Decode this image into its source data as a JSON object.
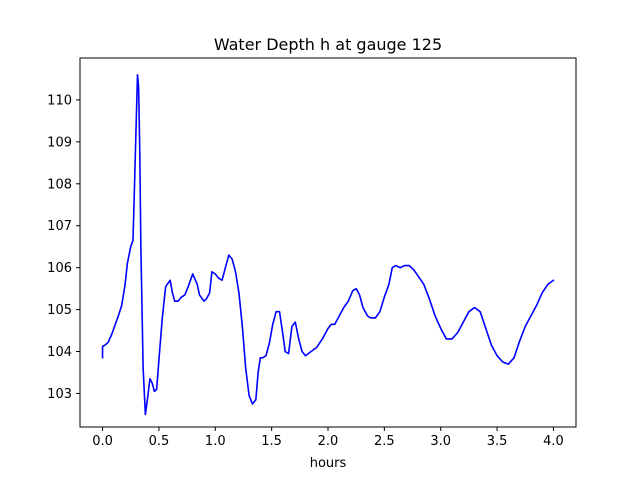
{
  "chart_data": {
    "type": "line",
    "title": "Water Depth h at gauge 125",
    "xlabel": "hours",
    "ylabel": "",
    "xlim": [
      -0.2,
      4.2
    ],
    "ylim": [
      102.2,
      111.0
    ],
    "xticks": [
      0.0,
      0.5,
      1.0,
      1.5,
      2.0,
      2.5,
      3.0,
      3.5,
      4.0
    ],
    "xtick_labels": [
      "0.0",
      "0.5",
      "1.0",
      "1.5",
      "2.0",
      "2.5",
      "3.0",
      "3.5",
      "4.0"
    ],
    "yticks": [
      103,
      104,
      105,
      106,
      107,
      108,
      109,
      110
    ],
    "ytick_labels": [
      "103",
      "104",
      "105",
      "106",
      "107",
      "108",
      "109",
      "110"
    ],
    "grid": false,
    "series": [
      {
        "color": "#0000ff",
        "x": [
          0.0,
          0.0,
          0.02,
          0.05,
          0.08,
          0.1,
          0.14,
          0.17,
          0.2,
          0.22,
          0.25,
          0.27,
          0.28,
          0.3,
          0.31,
          0.32,
          0.33,
          0.34,
          0.36,
          0.38,
          0.4,
          0.42,
          0.44,
          0.46,
          0.48,
          0.5,
          0.53,
          0.56,
          0.6,
          0.62,
          0.64,
          0.67,
          0.7,
          0.73,
          0.76,
          0.8,
          0.84,
          0.86,
          0.9,
          0.92,
          0.95,
          0.97,
          1.0,
          1.03,
          1.06,
          1.08,
          1.12,
          1.15,
          1.18,
          1.21,
          1.24,
          1.27,
          1.3,
          1.33,
          1.36,
          1.38,
          1.4,
          1.42,
          1.45,
          1.48,
          1.51,
          1.54,
          1.57,
          1.6,
          1.62,
          1.65,
          1.68,
          1.71,
          1.74,
          1.77,
          1.8,
          1.85,
          1.9,
          1.95,
          2.0,
          2.03,
          2.06,
          2.1,
          2.14,
          2.18,
          2.22,
          2.25,
          2.28,
          2.31,
          2.35,
          2.38,
          2.42,
          2.46,
          2.5,
          2.54,
          2.57,
          2.6,
          2.64,
          2.68,
          2.72,
          2.76,
          2.8,
          2.85,
          2.9,
          2.95,
          3.0,
          3.05,
          3.1,
          3.15,
          3.2,
          3.25,
          3.3,
          3.35,
          3.4,
          3.45,
          3.5,
          3.55,
          3.6,
          3.65,
          3.7,
          3.75,
          3.8,
          3.85,
          3.9,
          3.95,
          4.0
        ],
        "y": [
          103.85,
          104.12,
          104.15,
          104.22,
          104.4,
          104.55,
          104.85,
          105.1,
          105.6,
          106.1,
          106.5,
          106.65,
          107.6,
          109.6,
          110.6,
          110.3,
          108.8,
          106.5,
          103.6,
          102.5,
          102.9,
          103.35,
          103.25,
          103.05,
          103.1,
          103.8,
          104.8,
          105.55,
          105.7,
          105.4,
          105.2,
          105.2,
          105.3,
          105.35,
          105.55,
          105.85,
          105.6,
          105.35,
          105.2,
          105.25,
          105.4,
          105.9,
          105.85,
          105.75,
          105.7,
          105.9,
          106.3,
          106.2,
          105.9,
          105.4,
          104.6,
          103.6,
          102.95,
          102.75,
          102.85,
          103.5,
          103.85,
          103.85,
          103.9,
          104.2,
          104.65,
          104.95,
          104.95,
          104.4,
          104.0,
          103.95,
          104.6,
          104.7,
          104.3,
          104.0,
          103.9,
          104.0,
          104.1,
          104.3,
          104.55,
          104.65,
          104.65,
          104.85,
          105.05,
          105.2,
          105.45,
          105.5,
          105.35,
          105.05,
          104.85,
          104.8,
          104.8,
          104.95,
          105.3,
          105.6,
          106.0,
          106.05,
          106.0,
          106.05,
          106.05,
          105.95,
          105.8,
          105.6,
          105.25,
          104.85,
          104.55,
          104.3,
          104.3,
          104.45,
          104.7,
          104.95,
          105.05,
          104.95,
          104.55,
          104.15,
          103.9,
          103.75,
          103.7,
          103.85,
          104.25,
          104.6,
          104.85,
          105.1,
          105.4,
          105.6,
          105.7
        ]
      }
    ]
  }
}
